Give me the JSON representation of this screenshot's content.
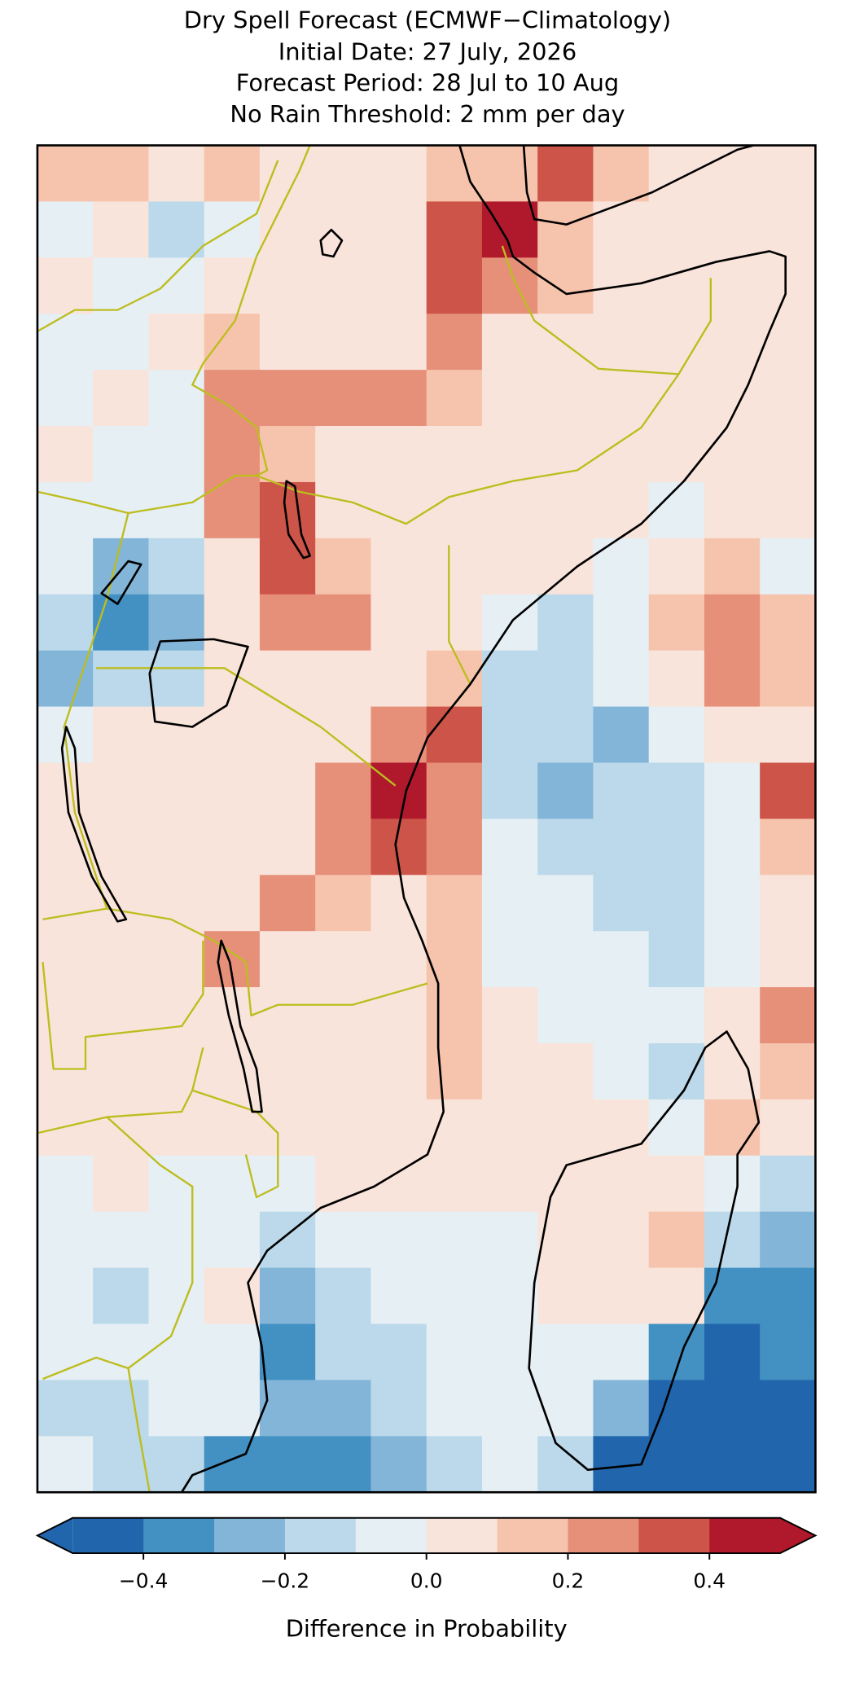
{
  "chart_data": {
    "type": "heatmap",
    "title": [
      "Dry Spell Forecast (ECMWF−Climatology)",
      "Initial Date: 27 July, 2026",
      "Forecast Period: 28 Jul to 10 Aug",
      "No Rain Threshold: 2 mm per day"
    ],
    "values": [
      [
        0.15,
        0.15,
        0.05,
        0.15,
        0.05,
        0.05,
        0.05,
        0.15,
        0.15,
        0.35,
        0.15,
        0.05,
        0.05,
        0.05
      ],
      [
        -0.05,
        0.05,
        -0.15,
        -0.05,
        0.05,
        0.05,
        0.05,
        0.35,
        0.45,
        0.15,
        0.05,
        0.05,
        0.05,
        0.05
      ],
      [
        0.05,
        -0.05,
        -0.05,
        0.05,
        0.05,
        0.05,
        0.05,
        0.35,
        0.25,
        0.15,
        0.05,
        0.05,
        0.05,
        0.05
      ],
      [
        -0.05,
        -0.05,
        0.05,
        0.15,
        0.05,
        0.05,
        0.05,
        0.25,
        0.05,
        0.05,
        0.05,
        0.05,
        0.05,
        0.05
      ],
      [
        -0.05,
        0.05,
        -0.05,
        0.25,
        0.25,
        0.25,
        0.25,
        0.15,
        0.05,
        0.05,
        0.05,
        0.05,
        0.05,
        0.05
      ],
      [
        0.05,
        -0.05,
        -0.05,
        0.25,
        0.15,
        0.05,
        0.05,
        0.05,
        0.05,
        0.05,
        0.05,
        0.05,
        0.05,
        0.05
      ],
      [
        -0.05,
        -0.05,
        -0.05,
        0.25,
        0.35,
        0.05,
        0.05,
        0.05,
        0.05,
        0.05,
        0.05,
        -0.05,
        0.05,
        0.05
      ],
      [
        -0.05,
        -0.25,
        -0.15,
        0.05,
        0.35,
        0.15,
        0.05,
        0.05,
        0.05,
        0.05,
        -0.05,
        0.05,
        0.15,
        -0.05
      ],
      [
        -0.15,
        -0.35,
        -0.25,
        0.05,
        0.25,
        0.25,
        0.05,
        0.05,
        -0.05,
        -0.15,
        -0.05,
        0.15,
        0.25,
        0.15
      ],
      [
        -0.25,
        -0.15,
        -0.15,
        0.05,
        0.05,
        0.05,
        0.05,
        0.15,
        -0.15,
        -0.15,
        -0.05,
        0.05,
        0.25,
        0.15
      ],
      [
        -0.05,
        0.05,
        0.05,
        0.05,
        0.05,
        0.05,
        0.25,
        0.35,
        -0.15,
        -0.15,
        -0.25,
        -0.05,
        0.05,
        0.05
      ],
      [
        0.05,
        0.05,
        0.05,
        0.05,
        0.05,
        0.25,
        0.45,
        0.25,
        -0.15,
        -0.25,
        -0.15,
        -0.15,
        -0.05,
        0.35
      ],
      [
        0.05,
        0.05,
        0.05,
        0.05,
        0.05,
        0.25,
        0.35,
        0.25,
        -0.05,
        -0.15,
        -0.15,
        -0.15,
        -0.05,
        0.15
      ],
      [
        0.05,
        0.05,
        0.05,
        0.05,
        0.25,
        0.15,
        0.05,
        0.15,
        -0.05,
        -0.05,
        -0.15,
        -0.15,
        -0.05,
        0.05
      ],
      [
        0.05,
        0.05,
        0.05,
        0.25,
        0.05,
        0.05,
        0.05,
        0.15,
        -0.05,
        -0.05,
        -0.05,
        -0.15,
        -0.05,
        0.05
      ],
      [
        0.05,
        0.05,
        0.05,
        0.05,
        0.05,
        0.05,
        0.05,
        0.15,
        0.05,
        -0.05,
        -0.05,
        -0.05,
        0.05,
        0.25
      ],
      [
        0.05,
        0.05,
        0.05,
        0.05,
        0.05,
        0.05,
        0.05,
        0.15,
        0.05,
        0.05,
        -0.05,
        -0.15,
        0.05,
        0.15
      ],
      [
        0.05,
        0.05,
        0.05,
        0.05,
        0.05,
        0.05,
        0.05,
        0.05,
        0.05,
        0.05,
        0.05,
        -0.05,
        0.15,
        0.05
      ],
      [
        -0.05,
        0.05,
        -0.05,
        -0.05,
        -0.05,
        0.05,
        0.05,
        0.05,
        0.05,
        0.05,
        0.05,
        0.05,
        -0.05,
        -0.15
      ],
      [
        -0.05,
        -0.05,
        -0.05,
        -0.05,
        -0.15,
        -0.05,
        -0.05,
        -0.05,
        -0.05,
        0.05,
        0.05,
        0.15,
        -0.15,
        -0.25
      ],
      [
        -0.05,
        -0.15,
        -0.05,
        0.05,
        -0.25,
        -0.15,
        -0.05,
        -0.05,
        -0.05,
        0.05,
        0.05,
        0.05,
        -0.35,
        -0.35
      ],
      [
        -0.05,
        -0.05,
        -0.05,
        -0.05,
        -0.35,
        -0.15,
        -0.15,
        -0.05,
        -0.05,
        -0.05,
        -0.05,
        -0.35,
        -0.45,
        -0.35
      ],
      [
        -0.15,
        -0.15,
        -0.05,
        -0.05,
        -0.25,
        -0.25,
        -0.15,
        -0.05,
        -0.05,
        -0.05,
        -0.25,
        -0.45,
        -0.45,
        -0.45
      ],
      [
        -0.05,
        -0.15,
        -0.15,
        -0.35,
        -0.35,
        -0.35,
        -0.25,
        -0.15,
        -0.05,
        -0.15,
        -0.45,
        -0.45,
        -0.45,
        -0.45
      ]
    ],
    "colorbar": {
      "boundaries": [
        -0.5,
        -0.4,
        -0.3,
        -0.2,
        -0.1,
        0,
        0.1,
        0.2,
        0.3,
        0.4,
        0.5
      ],
      "colors": [
        "#2166ac",
        "#4291c2",
        "#82b5d8",
        "#bbd9ea",
        "#e6eff4",
        "#f9e4db",
        "#f6c4ad",
        "#e6907a",
        "#cd5448",
        "#b0182c"
      ],
      "extend": "both",
      "ticks": [
        {
          "value": -0.4,
          "label": "−0.4"
        },
        {
          "value": -0.2,
          "label": "−0.2"
        },
        {
          "value": 0,
          "label": "0.0"
        },
        0.2,
        0.4
      ],
      "label": "Difference in Probability"
    }
  }
}
